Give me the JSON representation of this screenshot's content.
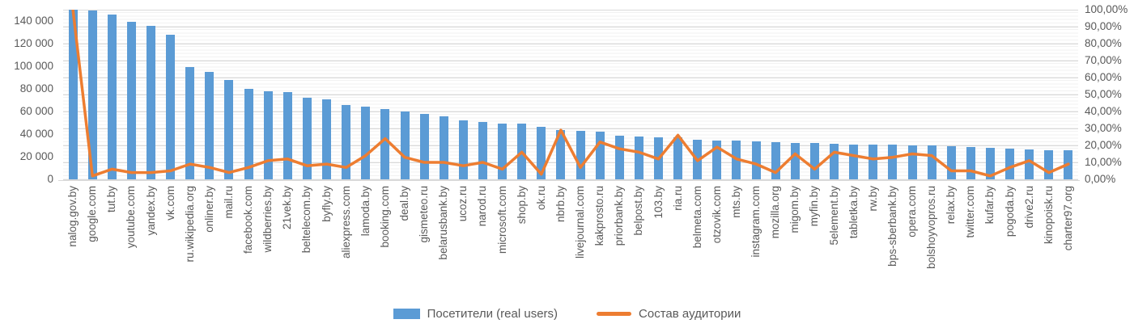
{
  "chart_data": {
    "type": "combo",
    "title": "",
    "categories": [
      "nalog.gov.by",
      "google.com",
      "tut.by",
      "youtube.com",
      "yandex.by",
      "vk.com",
      "ru.wikipedia.org",
      "onliner.by",
      "mail.ru",
      "facebook.com",
      "wildberries.by",
      "21vek.by",
      "beltelecom.by",
      "byfly.by",
      "aliexpress.com",
      "lamoda.by",
      "booking.com",
      "deal.by",
      "gismeteo.ru",
      "belarusbank.by",
      "ucoz.ru",
      "narod.ru",
      "microsoft.com",
      "shop.by",
      "ok.ru",
      "nbrb.by",
      "livejournal.com",
      "kakprosto.ru",
      "priorbank.by",
      "belpost.by",
      "103.by",
      "ria.ru",
      "belmeta.com",
      "otzovik.com",
      "mts.by",
      "instagram.com",
      "mozilla.org",
      "migom.by",
      "myfin.by",
      "5element.by",
      "tabletka.by",
      "rw.by",
      "bps-sberbank.by",
      "opera.com",
      "bolshoyvopros.ru",
      "relax.by",
      "twitter.com",
      "kufar.by",
      "pogoda.by",
      "drive2.ru",
      "kinopoisk.ru",
      "charter97.org"
    ],
    "series": [
      {
        "name": "Посетители (real users)",
        "type": "bar",
        "axis": "left",
        "color": "#5B9BD5",
        "values": [
          150000,
          149000,
          146000,
          139000,
          136000,
          128000,
          99000,
          95000,
          88000,
          80000,
          78000,
          77000,
          72000,
          71000,
          66000,
          64000,
          62000,
          60000,
          58000,
          56000,
          52000,
          51000,
          49500,
          49000,
          46500,
          43500,
          43000,
          42500,
          38500,
          38000,
          37500,
          37000,
          35000,
          34000,
          34000,
          33500,
          33000,
          32500,
          32500,
          31500,
          31000,
          30500,
          30500,
          30000,
          30000,
          29000,
          28500,
          28000,
          27000,
          26500,
          25500,
          26000
        ]
      },
      {
        "name": "Состав аудитории",
        "type": "line",
        "axis": "right",
        "color": "#ED7D31",
        "values_pct": [
          100,
          2,
          6,
          4,
          4,
          5,
          9,
          7,
          4,
          7,
          11,
          12,
          8,
          9,
          7,
          14,
          24,
          13,
          10,
          10,
          8,
          10,
          6,
          16,
          3,
          29,
          7,
          22,
          18,
          16,
          12,
          26,
          11,
          19,
          12,
          9,
          4,
          15,
          6,
          16,
          14,
          12,
          13,
          15,
          14,
          5,
          5,
          2,
          7,
          11,
          4,
          9
        ]
      }
    ],
    "left_axis": {
      "max": 150000,
      "tick_step": 20000,
      "ticks": [
        "0",
        "20 000",
        "40 000",
        "60 000",
        "80 000",
        "100 000",
        "120 000",
        "140 000"
      ]
    },
    "right_axis": {
      "max": 100,
      "tick_step": 10,
      "ticks": [
        "0,00%",
        "10,00%",
        "20,00%",
        "30,00%",
        "40,00%",
        "50,00%",
        "60,00%",
        "70,00%",
        "80,00%",
        "90,00%",
        "100,00%"
      ]
    },
    "grid": "horizontal major every 10%, minor every 2%",
    "legend_position": "bottom"
  },
  "colors": {
    "bar": "#5B9BD5",
    "line": "#ED7D31",
    "axis_text": "#595959",
    "gridline_major": "#D9D9D9",
    "gridline_minor": "#F2F2F2",
    "background": "#FFFFFF"
  }
}
